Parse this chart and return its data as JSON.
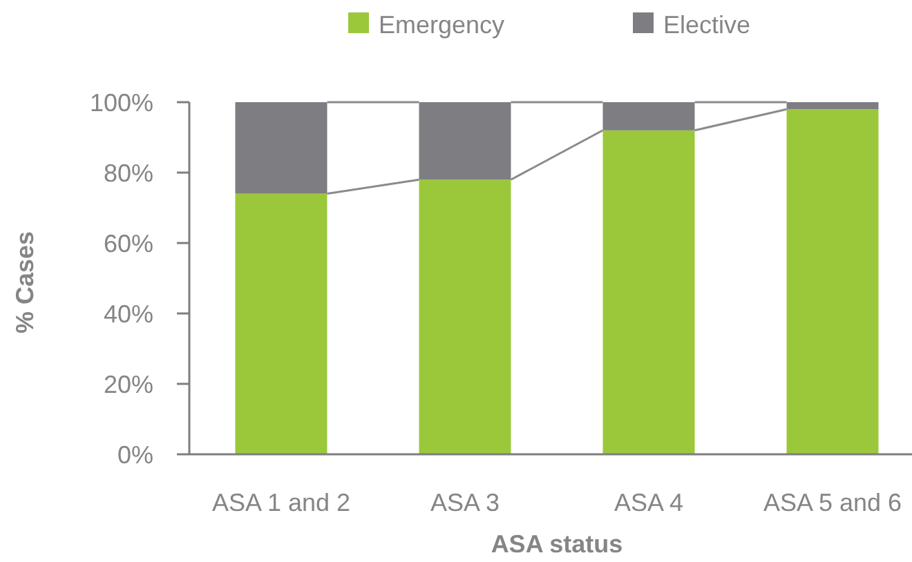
{
  "chart_data": {
    "type": "bar",
    "stacked": true,
    "xlabel": "ASA status",
    "ylabel": "% Cases",
    "legend": "top",
    "categories": [
      "ASA 1 and 2",
      "ASA 3",
      "ASA 4",
      "ASA 5 and 6"
    ],
    "series": [
      {
        "name": "Emergency",
        "color": "#9bc83b",
        "values": [
          74,
          78,
          92,
          98
        ]
      },
      {
        "name": "Elective",
        "color": "#7e7d82",
        "values": [
          26,
          22,
          8,
          2
        ]
      }
    ],
    "ylim": [
      0,
      100
    ],
    "yticks": [
      {
        "value": 0,
        "label": "0%"
      },
      {
        "value": 20,
        "label": "20%"
      },
      {
        "value": 40,
        "label": "40%"
      },
      {
        "value": 60,
        "label": "60%"
      },
      {
        "value": 80,
        "label": "80%"
      },
      {
        "value": 100,
        "label": "100%"
      }
    ]
  }
}
